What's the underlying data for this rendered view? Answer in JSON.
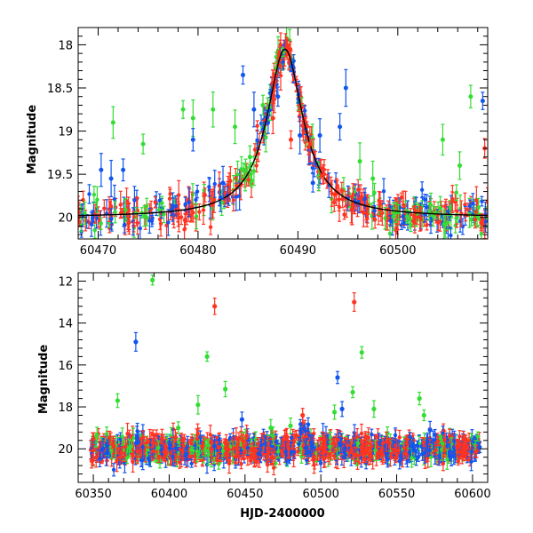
{
  "chart_data": [
    {
      "type": "scatter",
      "title": "",
      "xlabel": "",
      "ylabel": "Magnitude",
      "xlim": [
        60468,
        60509
      ],
      "ylim": [
        20.25,
        17.8
      ],
      "y_inverted": true,
      "grid": false,
      "xticks": [
        60470,
        60480,
        60490,
        60500
      ],
      "yticks": [
        18,
        18.5,
        19,
        19.5,
        20
      ],
      "colors": {
        "g": "#33dd33",
        "b": "#1155ee",
        "r": "#ff3322",
        "model": "#000000"
      },
      "baseline": 20.0,
      "peak": {
        "x": 60488.7,
        "y": 18.05
      },
      "series": [
        {
          "color": "g",
          "outliers": [
            [
              60471.5,
              18.9
            ],
            [
              60474.5,
              19.15
            ],
            [
              60478.5,
              18.75
            ],
            [
              60479.5,
              18.85
            ],
            [
              60481.5,
              18.75
            ],
            [
              60483.7,
              18.95
            ],
            [
              60485.2,
              19.3
            ],
            [
              60486.5,
              18.7
            ],
            [
              60496.2,
              19.35
            ],
            [
              60497.5,
              19.55
            ],
            [
              60504.5,
              19.1
            ],
            [
              60506.2,
              19.4
            ],
            [
              60507.3,
              18.6
            ]
          ]
        },
        {
          "color": "b",
          "outliers": [
            [
              60470.3,
              19.45
            ],
            [
              60471.3,
              19.55
            ],
            [
              60472.5,
              19.45
            ],
            [
              60479.5,
              19.1
            ],
            [
              60482.5,
              19.6
            ],
            [
              60484.5,
              18.35
            ],
            [
              60485.6,
              18.75
            ],
            [
              60488.0,
              18.6
            ],
            [
              60490.2,
              19.05
            ],
            [
              60491.5,
              19.6
            ],
            [
              60492.2,
              19.05
            ],
            [
              60494.2,
              18.95
            ],
            [
              60494.8,
              18.5
            ],
            [
              60508.5,
              18.65
            ]
          ]
        },
        {
          "color": "r",
          "outliers": [
            [
              60487.5,
              18.85
            ],
            [
              60489.3,
              19.1
            ],
            [
              60491.2,
              19.15
            ],
            [
              60492.6,
              19.5
            ],
            [
              60508.7,
              19.2
            ]
          ]
        }
      ]
    },
    {
      "type": "scatter",
      "title": "",
      "xlabel": "HJD-2400000",
      "ylabel": "Magnitude",
      "xlim": [
        60340,
        60610
      ],
      "ylim": [
        21.6,
        11.6
      ],
      "y_inverted": true,
      "grid": false,
      "xticks": [
        60350,
        60400,
        60450,
        60500,
        60550,
        60600
      ],
      "yticks": [
        12,
        14,
        16,
        18,
        20
      ],
      "colors": {
        "g": "#33dd33",
        "b": "#1155ee",
        "r": "#ff3322"
      },
      "series": [
        {
          "color": "g",
          "outliers": [
            [
              60366,
              17.7
            ],
            [
              60389,
              11.95
            ],
            [
              60406,
              19.0
            ],
            [
              60419,
              17.9
            ],
            [
              60425,
              15.6
            ],
            [
              60437,
              17.15
            ],
            [
              60467,
              19.0
            ],
            [
              60480,
              18.9
            ],
            [
              60509,
              18.25
            ],
            [
              60521,
              17.3
            ],
            [
              60527,
              15.4
            ],
            [
              60535,
              18.1
            ],
            [
              60565,
              17.6
            ],
            [
              60568,
              18.4
            ]
          ]
        },
        {
          "color": "b",
          "outliers": [
            [
              60378,
              14.9
            ],
            [
              60448,
              18.6
            ],
            [
              60511,
              16.6
            ],
            [
              60514,
              18.1
            ],
            [
              60572,
              19.1
            ]
          ]
        },
        {
          "color": "r",
          "outliers": [
            [
              60430,
              13.2
            ],
            [
              60522,
              13.0
            ],
            [
              60488,
              18.4
            ]
          ]
        }
      ]
    }
  ]
}
